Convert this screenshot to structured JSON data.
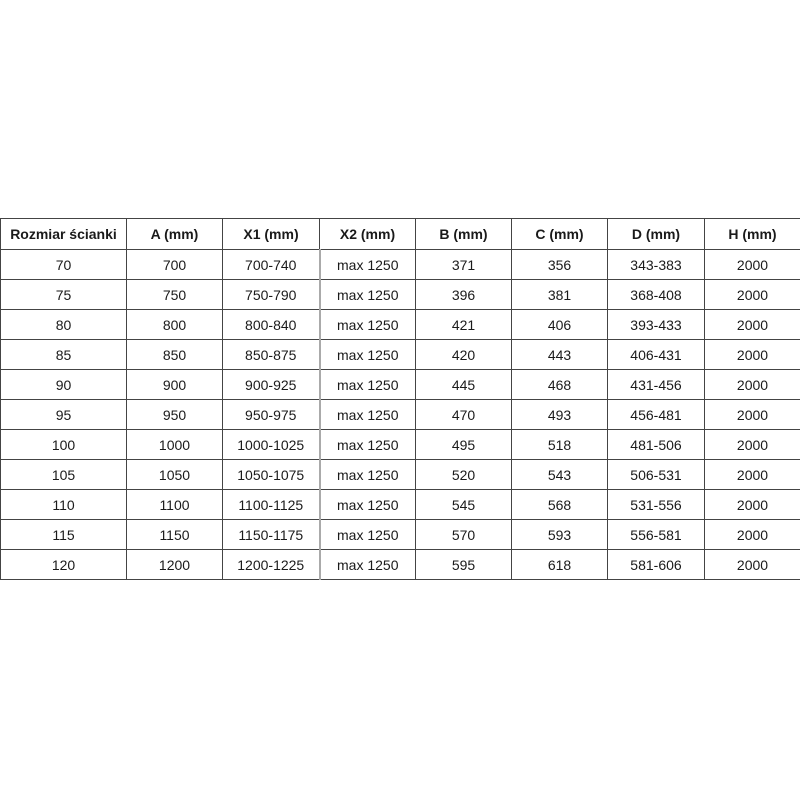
{
  "table": {
    "headers": [
      "Rozmiar ścianki",
      "A (mm)",
      "X1 (mm)",
      "X2 (mm)",
      "B (mm)",
      "C (mm)",
      "D (mm)",
      "H (mm)"
    ],
    "rows": [
      [
        "70",
        "700",
        "700-740",
        "max 1250",
        "371",
        "356",
        "343-383",
        "2000"
      ],
      [
        "75",
        "750",
        "750-790",
        "max 1250",
        "396",
        "381",
        "368-408",
        "2000"
      ],
      [
        "80",
        "800",
        "800-840",
        "max 1250",
        "421",
        "406",
        "393-433",
        "2000"
      ],
      [
        "85",
        "850",
        "850-875",
        "max 1250",
        "420",
        "443",
        "406-431",
        "2000"
      ],
      [
        "90",
        "900",
        "900-925",
        "max 1250",
        "445",
        "468",
        "431-456",
        "2000"
      ],
      [
        "95",
        "950",
        "950-975",
        "max 1250",
        "470",
        "493",
        "456-481",
        "2000"
      ],
      [
        "100",
        "1000",
        "1000-1025",
        "max 1250",
        "495",
        "518",
        "481-506",
        "2000"
      ],
      [
        "105",
        "1050",
        "1050-1075",
        "max 1250",
        "520",
        "543",
        "506-531",
        "2000"
      ],
      [
        "110",
        "1100",
        "1100-1125",
        "max 1250",
        "545",
        "568",
        "531-556",
        "2000"
      ],
      [
        "115",
        "1150",
        "1150-1175",
        "max 1250",
        "570",
        "593",
        "556-581",
        "2000"
      ],
      [
        "120",
        "1200",
        "1200-1225",
        "max 1250",
        "595",
        "618",
        "581-606",
        "2000"
      ]
    ]
  }
}
